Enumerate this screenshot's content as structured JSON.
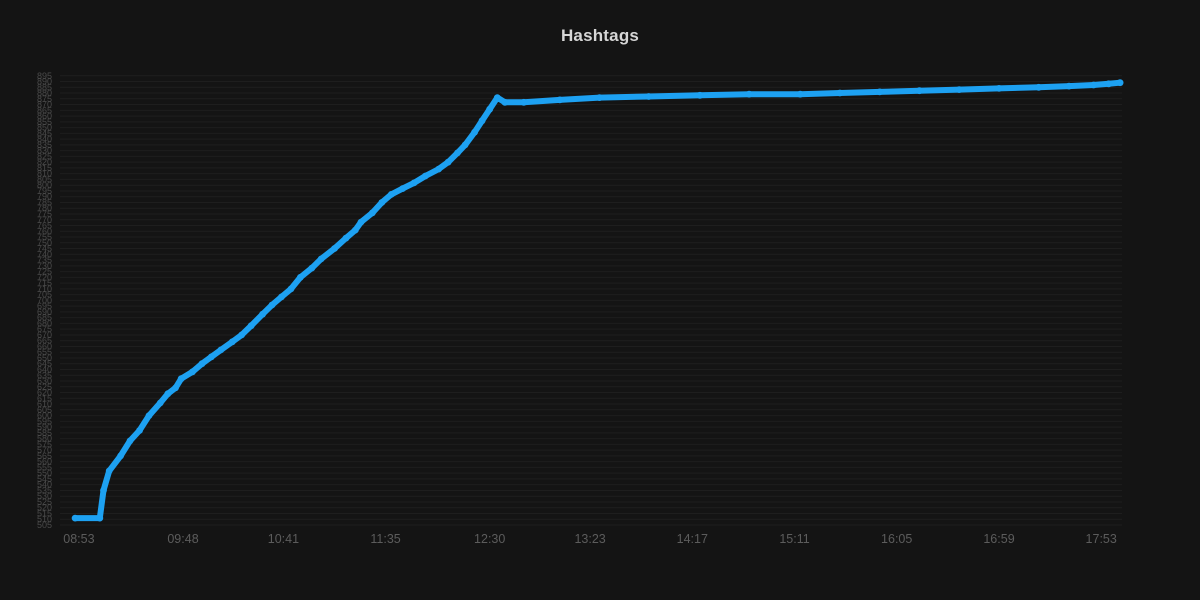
{
  "page": {
    "background": "#141414"
  },
  "chart_data": {
    "type": "line",
    "title": "Hashtags",
    "legend": {
      "visible": false
    },
    "axes": {
      "x_ticks": [
        "08:53",
        "09:48",
        "10:41",
        "11:35",
        "12:30",
        "13:23",
        "14:17",
        "15:11",
        "16:05",
        "16:59",
        "17:53"
      ],
      "x_domain": [
        "08:43",
        "18:04"
      ],
      "y_domain": [
        505,
        900
      ],
      "y_tick_min": 505,
      "y_tick_max": 895,
      "y_tick_step": 5,
      "grid": "horizontal-dense",
      "y_labels_overlapping": true
    },
    "colors": {
      "line": "#1da1f2",
      "grid": "#1e1e1e",
      "y_tick_label": "#4a4a4a",
      "x_tick_label": "#5c5c5c",
      "title": "#d6d6d6",
      "background": "#141414"
    },
    "series": [
      {
        "name": "Hashtags",
        "color": "#1da1f2",
        "points": [
          [
            "08:51",
            511
          ],
          [
            "09:04",
            511
          ],
          [
            "09:06",
            535
          ],
          [
            "09:09",
            552
          ],
          [
            "09:15",
            565
          ],
          [
            "09:20",
            578
          ],
          [
            "09:25",
            587
          ],
          [
            "09:30",
            600
          ],
          [
            "09:36",
            611
          ],
          [
            "09:40",
            619
          ],
          [
            "09:44",
            624
          ],
          [
            "09:47",
            632
          ],
          [
            "09:53",
            638
          ],
          [
            "09:58",
            645
          ],
          [
            "10:03",
            651
          ],
          [
            "10:08",
            657
          ],
          [
            "10:14",
            664
          ],
          [
            "10:19",
            670
          ],
          [
            "10:24",
            678
          ],
          [
            "10:30",
            688
          ],
          [
            "10:35",
            696
          ],
          [
            "10:40",
            703
          ],
          [
            "10:45",
            710
          ],
          [
            "10:50",
            720
          ],
          [
            "10:56",
            728
          ],
          [
            "11:01",
            736
          ],
          [
            "11:08",
            745
          ],
          [
            "11:14",
            754
          ],
          [
            "11:19",
            761
          ],
          [
            "11:22",
            768
          ],
          [
            "11:28",
            776
          ],
          [
            "11:33",
            785
          ],
          [
            "11:38",
            792
          ],
          [
            "11:44",
            797
          ],
          [
            "11:50",
            802
          ],
          [
            "11:56",
            808
          ],
          [
            "12:03",
            814
          ],
          [
            "12:08",
            820
          ],
          [
            "12:13",
            828
          ],
          [
            "12:17",
            835
          ],
          [
            "12:22",
            846
          ],
          [
            "12:26",
            856
          ],
          [
            "12:30",
            866
          ],
          [
            "12:34",
            876
          ],
          [
            "12:38",
            872
          ],
          [
            "12:48",
            872
          ],
          [
            "13:07",
            874
          ],
          [
            "13:28",
            876
          ],
          [
            "13:54",
            877
          ],
          [
            "14:21",
            878
          ],
          [
            "14:47",
            879
          ],
          [
            "15:14",
            879
          ],
          [
            "15:35",
            880
          ],
          [
            "15:56",
            881
          ],
          [
            "16:17",
            882
          ],
          [
            "16:38",
            883
          ],
          [
            "16:59",
            884
          ],
          [
            "17:20",
            885
          ],
          [
            "17:36",
            886
          ],
          [
            "17:49",
            887
          ],
          [
            "17:57",
            888
          ],
          [
            "18:03",
            889
          ]
        ]
      }
    ]
  }
}
